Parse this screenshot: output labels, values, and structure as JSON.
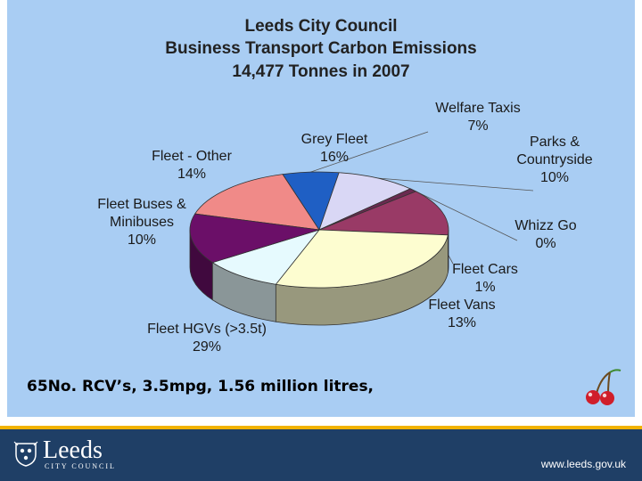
{
  "chart_data": {
    "type": "pie",
    "title": "Leeds City Council",
    "subtitle_lines": [
      "Business Transport Carbon  Emissions",
      "14,477 Tonnes in 2007"
    ],
    "slices": [
      {
        "name": "Grey Fleet",
        "value": 16,
        "label": "16%",
        "color": "#f08a88"
      },
      {
        "name": "Welfare Taxis",
        "value": 7,
        "label": "7%",
        "color": "#1f5fc4"
      },
      {
        "name": "Parks & Countryside",
        "value": 10,
        "label": "10%",
        "color": "#d9d7f5"
      },
      {
        "name": "Whizz Go",
        "value": 0,
        "label": "0%",
        "color": "#c0c0c0"
      },
      {
        "name": "Fleet Cars",
        "value": 1,
        "label": "1%",
        "color": "#6a2a50"
      },
      {
        "name": "Fleet Vans",
        "value": 13,
        "label": "13%",
        "color": "#993a66"
      },
      {
        "name": "Fleet HGVs (>3.5t)",
        "value": 29,
        "label": "29%",
        "color": "#fdfdd0"
      },
      {
        "name": "Fleet Buses & Minibuses",
        "value": 10,
        "label": "10%",
        "color": "#e6fafe"
      },
      {
        "name": "Fleet - Other",
        "value": 14,
        "label": "14%",
        "color": "#6b0f68"
      }
    ],
    "legend": "none"
  },
  "caption": "65No. RCV’s, 3.5mpg, 1.56 million litres,",
  "footer": {
    "logo_text": "Leeds",
    "logo_sub": "CITY COUNCIL",
    "url": "www.leeds.gov.uk",
    "accent": "#f2b300",
    "background": "#1f3f66"
  },
  "icons": [
    "city-crest-icon",
    "cherries-icon"
  ]
}
